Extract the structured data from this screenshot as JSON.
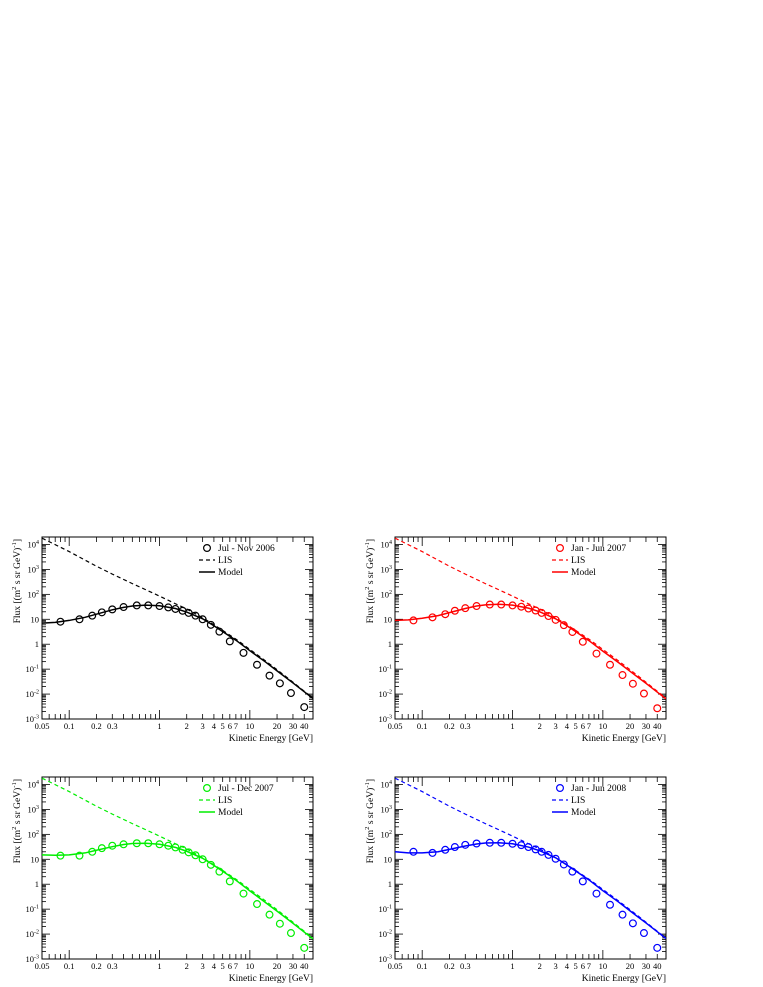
{
  "chart_data": [
    {
      "type": "line",
      "color": "#000000",
      "xlabel": "Kinetic Energy [GeV]",
      "ylabel": "Flux [(m² s sr GeV)⁻¹]",
      "xscale": "log",
      "yscale": "log",
      "xlim": [
        0.05,
        50
      ],
      "ylim": [
        0.001,
        20000
      ],
      "legend_position": "top-right",
      "series": [
        {
          "name": "Jul - Nov 2006",
          "style": "markers",
          "x": [
            0.08,
            0.13,
            0.18,
            0.23,
            0.3,
            0.4,
            0.56,
            0.75,
            1.0,
            1.25,
            1.5,
            1.8,
            2.1,
            2.5,
            3.0,
            3.7,
            4.6,
            6.0,
            8.5,
            12,
            16.5,
            21.5,
            28.5,
            40
          ],
          "y": [
            8,
            10,
            14,
            19,
            25,
            31,
            36,
            36,
            34,
            30,
            26,
            22,
            18,
            14,
            10,
            6,
            3.2,
            1.3,
            0.45,
            0.15,
            0.055,
            0.027,
            0.011,
            0.003
          ]
        },
        {
          "name": "LIS",
          "style": "dashed",
          "x": [
            0.05,
            0.1,
            0.2,
            0.3,
            0.5,
            0.7,
            1,
            1.5,
            2,
            3,
            4,
            5,
            7,
            10,
            15,
            20,
            30,
            50
          ],
          "y": [
            18000,
            5200,
            1350,
            650,
            270,
            155,
            85,
            42,
            26,
            11.5,
            6,
            3.6,
            1.6,
            0.62,
            0.21,
            0.095,
            0.03,
            0.0068
          ]
        },
        {
          "name": "Model",
          "style": "solid",
          "x": [
            0.05,
            0.07,
            0.1,
            0.15,
            0.2,
            0.3,
            0.4,
            0.5,
            0.7,
            1,
            1.5,
            2,
            3,
            4,
            5,
            7,
            10,
            15,
            20,
            30,
            50
          ],
          "y": [
            7,
            7.5,
            9,
            12,
            16,
            24,
            30,
            34,
            37,
            35,
            27,
            19.5,
            10.5,
            5.5,
            3.2,
            1.45,
            0.55,
            0.19,
            0.085,
            0.028,
            0.0066
          ]
        }
      ]
    },
    {
      "type": "line",
      "color": "#ff0000",
      "xlabel": "Kinetic Energy [GeV]",
      "ylabel": "Flux [(m² s sr GeV)⁻¹]",
      "xscale": "log",
      "yscale": "log",
      "xlim": [
        0.05,
        50
      ],
      "ylim": [
        0.001,
        20000
      ],
      "legend_position": "top-right",
      "series": [
        {
          "name": "Jan - Jun 2007",
          "style": "markers",
          "x": [
            0.08,
            0.13,
            0.18,
            0.23,
            0.3,
            0.4,
            0.56,
            0.75,
            1.0,
            1.25,
            1.5,
            1.8,
            2.1,
            2.5,
            3.0,
            3.7,
            4.6,
            6.0,
            8.5,
            12,
            16.5,
            21.5,
            28.5,
            40
          ],
          "y": [
            9,
            12,
            16,
            22,
            28,
            34,
            39,
            39,
            36,
            32,
            27,
            22.5,
            18,
            13.5,
            9.5,
            5.8,
            3.1,
            1.25,
            0.42,
            0.15,
            0.058,
            0.026,
            0.0105,
            0.0027
          ]
        },
        {
          "name": "LIS",
          "style": "dashed",
          "x": [
            0.05,
            0.1,
            0.2,
            0.3,
            0.5,
            0.7,
            1,
            1.5,
            2,
            3,
            4,
            5,
            7,
            10,
            15,
            20,
            30,
            50
          ],
          "y": [
            18000,
            5200,
            1350,
            650,
            270,
            155,
            85,
            42,
            26,
            11.5,
            6,
            3.6,
            1.6,
            0.62,
            0.21,
            0.095,
            0.03,
            0.0068
          ]
        },
        {
          "name": "Model",
          "style": "solid",
          "x": [
            0.05,
            0.07,
            0.1,
            0.15,
            0.2,
            0.3,
            0.4,
            0.5,
            0.7,
            1,
            1.5,
            2,
            3,
            4,
            5,
            7,
            10,
            15,
            20,
            30,
            50
          ],
          "y": [
            9,
            9.5,
            11,
            14,
            18.5,
            27,
            34,
            38,
            40,
            37,
            28,
            20,
            10.5,
            5.5,
            3.2,
            1.4,
            0.53,
            0.18,
            0.082,
            0.027,
            0.0064
          ]
        }
      ]
    },
    {
      "type": "line",
      "color": "#00ee00",
      "xlabel": "Kinetic Energy [GeV]",
      "ylabel": "Flux [(m² s sr GeV)⁻¹]",
      "xscale": "log",
      "yscale": "log",
      "xlim": [
        0.05,
        50
      ],
      "ylim": [
        0.001,
        20000
      ],
      "legend_position": "top-right",
      "series": [
        {
          "name": "Jul - Dec 2007",
          "style": "markers",
          "x": [
            0.08,
            0.13,
            0.18,
            0.23,
            0.3,
            0.4,
            0.56,
            0.75,
            1.0,
            1.25,
            1.5,
            1.8,
            2.1,
            2.5,
            3.0,
            3.7,
            4.6,
            6.0,
            8.5,
            12,
            16.5,
            21.5,
            28.5,
            40
          ],
          "y": [
            14,
            14,
            20,
            28,
            35,
            40,
            44,
            44,
            40,
            35,
            30,
            24,
            19,
            14.5,
            10,
            6,
            3.2,
            1.3,
            0.42,
            0.16,
            0.06,
            0.026,
            0.011,
            0.0028
          ]
        },
        {
          "name": "LIS",
          "style": "dashed",
          "x": [
            0.05,
            0.1,
            0.2,
            0.3,
            0.5,
            0.7,
            1,
            1.5,
            2,
            3,
            4,
            5,
            7,
            10,
            15,
            20,
            30,
            50
          ],
          "y": [
            18000,
            5200,
            1350,
            650,
            270,
            155,
            85,
            42,
            26,
            11.5,
            6,
            3.6,
            1.6,
            0.62,
            0.21,
            0.095,
            0.03,
            0.0068
          ]
        },
        {
          "name": "Model",
          "style": "solid",
          "x": [
            0.05,
            0.07,
            0.1,
            0.15,
            0.2,
            0.3,
            0.4,
            0.5,
            0.7,
            1,
            1.5,
            2,
            3,
            4,
            5,
            7,
            10,
            15,
            20,
            30,
            50
          ],
          "y": [
            15,
            14.5,
            15,
            18,
            23,
            32,
            39,
            43,
            44,
            40,
            30,
            21,
            11,
            5.7,
            3.3,
            1.45,
            0.54,
            0.18,
            0.083,
            0.027,
            0.0064
          ]
        }
      ]
    },
    {
      "type": "line",
      "color": "#0000ff",
      "xlabel": "Kinetic Energy [GeV]",
      "ylabel": "Flux [(m² s sr GeV)⁻¹]",
      "xscale": "log",
      "yscale": "log",
      "xlim": [
        0.05,
        50
      ],
      "ylim": [
        0.001,
        20000
      ],
      "legend_position": "top-right",
      "series": [
        {
          "name": "Jan - Jun 2008",
          "style": "markers",
          "x": [
            0.08,
            0.13,
            0.18,
            0.23,
            0.3,
            0.4,
            0.56,
            0.75,
            1.0,
            1.25,
            1.5,
            1.8,
            2.1,
            2.5,
            3.0,
            3.7,
            4.6,
            6.0,
            8.5,
            12,
            16.5,
            21.5,
            28.5,
            40
          ],
          "y": [
            20,
            18,
            24,
            31,
            38,
            43,
            46,
            46,
            42,
            37,
            31,
            25,
            20,
            15,
            10.5,
            6.2,
            3.2,
            1.3,
            0.42,
            0.15,
            0.06,
            0.027,
            0.011,
            0.0028
          ]
        },
        {
          "name": "LIS",
          "style": "dashed",
          "x": [
            0.05,
            0.1,
            0.2,
            0.3,
            0.5,
            0.7,
            1,
            1.5,
            2,
            3,
            4,
            5,
            7,
            10,
            15,
            20,
            30,
            50
          ],
          "y": [
            18000,
            5200,
            1350,
            650,
            270,
            155,
            85,
            42,
            26,
            11.5,
            6,
            3.6,
            1.6,
            0.62,
            0.21,
            0.095,
            0.03,
            0.0068
          ]
        },
        {
          "name": "Model",
          "style": "solid",
          "x": [
            0.05,
            0.07,
            0.1,
            0.15,
            0.2,
            0.3,
            0.4,
            0.5,
            0.7,
            1,
            1.5,
            2,
            3,
            4,
            5,
            7,
            10,
            15,
            20,
            30,
            50
          ],
          "y": [
            20,
            18,
            18,
            20,
            25,
            34,
            41,
            45,
            46,
            42,
            31,
            22,
            11.5,
            5.9,
            3.4,
            1.5,
            0.55,
            0.19,
            0.085,
            0.028,
            0.0066
          ]
        }
      ]
    }
  ]
}
